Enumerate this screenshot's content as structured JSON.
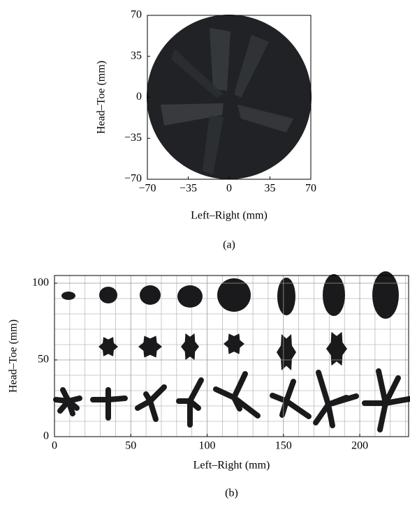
{
  "chart_data": [
    {
      "type": "image",
      "xlabel": "Left–Right (mm)",
      "ylabel": "Head–Toe (mm)",
      "caption": "(a)",
      "xlim": [
        -70,
        70
      ],
      "ylim": [
        -70,
        70
      ],
      "xticks": [
        {
          "value": -70,
          "label": "−70"
        },
        {
          "value": -35,
          "label": "−35"
        },
        0,
        35,
        70
      ],
      "yticks": [
        {
          "value": -70,
          "label": "−70"
        },
        {
          "value": -35,
          "label": "−35"
        },
        0,
        35,
        70
      ],
      "grid": false
    },
    {
      "type": "image",
      "xlabel": "Left–Right (mm)",
      "ylabel": "Head–Toe (mm)",
      "caption": "(b)",
      "xlim": [
        0,
        232
      ],
      "ylim": [
        0,
        105
      ],
      "xticks": [
        0,
        50,
        100,
        150,
        200
      ],
      "yticks": [
        0,
        50,
        100
      ],
      "xminorticks": [
        10,
        20,
        30,
        40,
        60,
        70,
        80,
        90,
        110,
        120,
        130,
        140,
        160,
        170,
        180,
        190,
        210,
        220,
        230
      ],
      "yminorticks": [
        10,
        20,
        30,
        40,
        60,
        70,
        80,
        90
      ],
      "grid": true
    }
  ]
}
